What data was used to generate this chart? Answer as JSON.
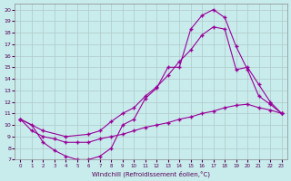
{
  "xlabel": "Windchill (Refroidissement éolien,°C)",
  "bg_color": "#c8ecec",
  "line_color": "#990099",
  "grid_color": "#b0c8c8",
  "xlim": [
    -0.5,
    23.5
  ],
  "ylim": [
    7,
    20.5
  ],
  "xticks": [
    0,
    1,
    2,
    3,
    4,
    5,
    6,
    7,
    8,
    9,
    10,
    11,
    12,
    13,
    14,
    15,
    16,
    17,
    18,
    19,
    20,
    21,
    22,
    23
  ],
  "yticks": [
    7,
    8,
    9,
    10,
    11,
    12,
    13,
    14,
    15,
    16,
    17,
    18,
    19,
    20
  ],
  "curve1_x": [
    0,
    1,
    2,
    3,
    4,
    5,
    6,
    7,
    8,
    9,
    10,
    11,
    12,
    13,
    14,
    15,
    16,
    17,
    18,
    19,
    20,
    21,
    22,
    23
  ],
  "curve1_y": [
    10.5,
    10.0,
    8.5,
    7.8,
    7.3,
    7.0,
    7.0,
    7.3,
    8.0,
    10.0,
    10.5,
    12.3,
    13.2,
    15.0,
    15.0,
    18.3,
    19.5,
    20.0,
    19.3,
    16.8,
    14.8,
    12.5,
    11.8,
    11.0
  ],
  "curve2_x": [
    0,
    2,
    4,
    6,
    7,
    8,
    9,
    10,
    11,
    12,
    13,
    14,
    15,
    16,
    17,
    18,
    19,
    20,
    21,
    22,
    23
  ],
  "curve2_y": [
    10.5,
    9.5,
    9.0,
    9.2,
    9.5,
    10.3,
    11.0,
    11.5,
    12.5,
    13.3,
    14.3,
    15.5,
    16.5,
    17.8,
    18.5,
    18.3,
    14.8,
    15.0,
    13.5,
    12.0,
    11.0
  ],
  "curve3_x": [
    0,
    1,
    2,
    3,
    4,
    5,
    6,
    7,
    8,
    9,
    10,
    11,
    12,
    13,
    14,
    15,
    16,
    17,
    18,
    19,
    20,
    21,
    22,
    23
  ],
  "curve3_y": [
    10.5,
    9.5,
    9.0,
    8.8,
    8.5,
    8.5,
    8.5,
    8.8,
    9.0,
    9.2,
    9.5,
    9.8,
    10.0,
    10.2,
    10.5,
    10.7,
    11.0,
    11.2,
    11.5,
    11.7,
    11.8,
    11.5,
    11.3,
    11.0
  ]
}
